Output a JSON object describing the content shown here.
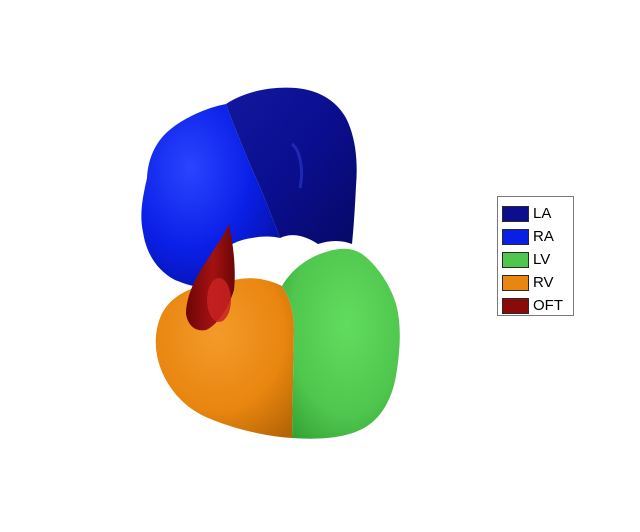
{
  "figure": {
    "structures": [
      {
        "key": "LA",
        "label": "LA",
        "color": "#0a0e8f"
      },
      {
        "key": "RA",
        "label": "RA",
        "color": "#0a1fe6"
      },
      {
        "key": "LV",
        "label": "LV",
        "color": "#4fc64d"
      },
      {
        "key": "RV",
        "label": "RV",
        "color": "#e8860f"
      },
      {
        "key": "OFT",
        "label": "OFT",
        "color": "#8a0a0a"
      }
    ]
  },
  "legend": {
    "items": [
      {
        "label": "LA",
        "color": "#0a0e8f"
      },
      {
        "label": "RA",
        "color": "#0a1fe6"
      },
      {
        "label": "LV",
        "color": "#4fc64d"
      },
      {
        "label": "RV",
        "color": "#e8860f"
      },
      {
        "label": "OFT",
        "color": "#8a0a0a"
      }
    ]
  }
}
